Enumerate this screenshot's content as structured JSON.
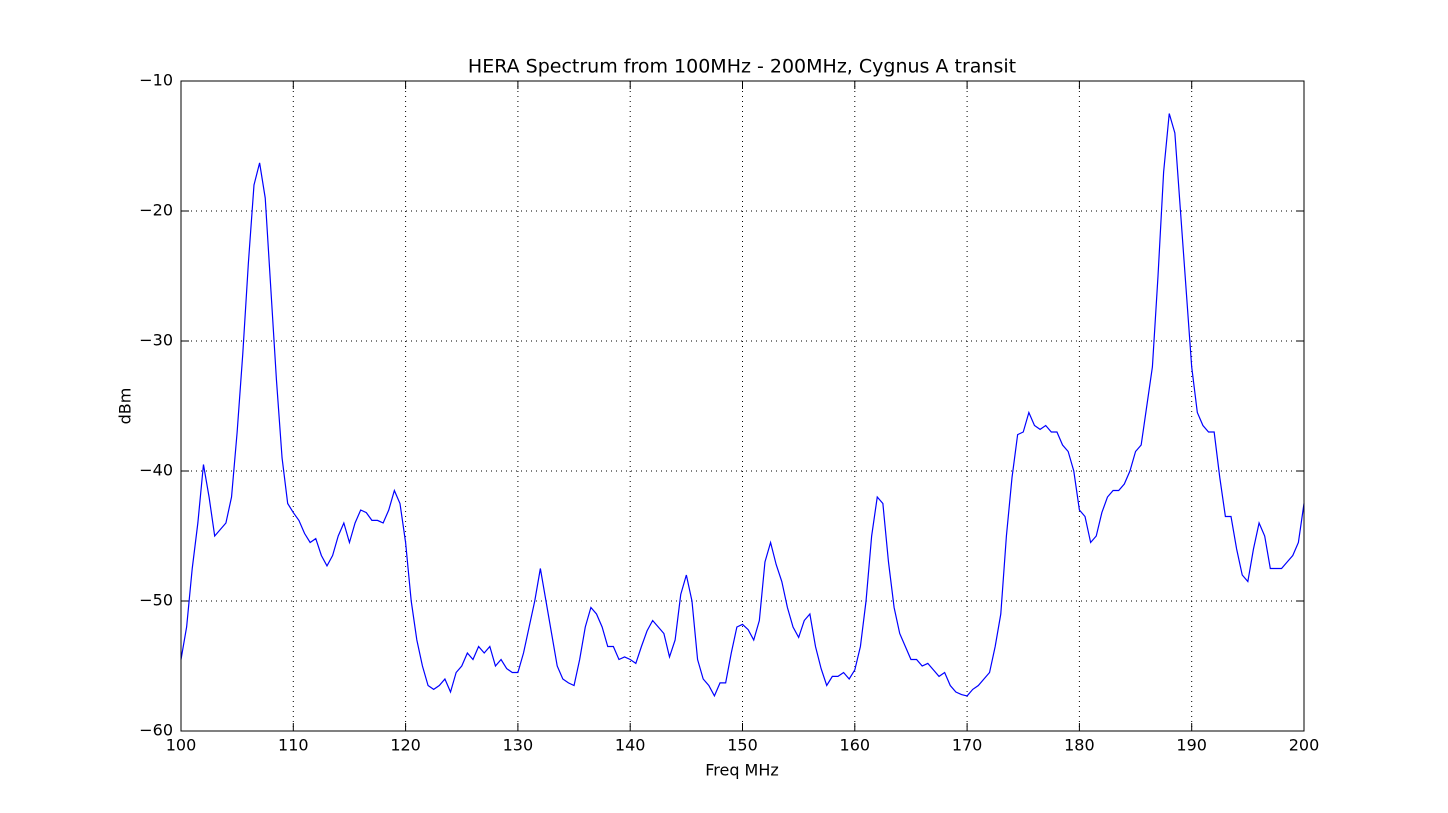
{
  "chart_data": {
    "type": "line",
    "title": "HERA Spectrum from 100MHz - 200MHz, Cygnus A transit",
    "x_label": "Freq MHz",
    "y_label": "dBm",
    "x": [
      100,
      100.5,
      101,
      101.5,
      102,
      102.5,
      103,
      103.5,
      104,
      104.5,
      105,
      105.5,
      106,
      106.5,
      107,
      107.5,
      108,
      108.5,
      109,
      109.5,
      110,
      110.5,
      111,
      111.5,
      112,
      112.5,
      113,
      113.5,
      114,
      114.5,
      115,
      115.5,
      116,
      116.5,
      117,
      117.5,
      118,
      118.5,
      119,
      119.5,
      120,
      120.5,
      121,
      121.5,
      122,
      122.5,
      123,
      123.5,
      124,
      124.5,
      125,
      125.5,
      126,
      126.5,
      127,
      127.5,
      128,
      128.5,
      129,
      129.5,
      130,
      130.5,
      131,
      131.5,
      132,
      132.5,
      133,
      133.5,
      134,
      134.5,
      135,
      135.5,
      136,
      136.5,
      137,
      137.5,
      138,
      138.5,
      139,
      139.5,
      140,
      140.5,
      141,
      141.5,
      142,
      142.5,
      143,
      143.5,
      144,
      144.5,
      145,
      145.5,
      146,
      146.5,
      147,
      147.5,
      148,
      148.5,
      149,
      149.5,
      150,
      150.5,
      151,
      151.5,
      152,
      152.5,
      153,
      153.5,
      154,
      154.5,
      155,
      155.5,
      156,
      156.5,
      157,
      157.5,
      158,
      158.5,
      159,
      159.5,
      160,
      160.5,
      161,
      161.5,
      162,
      162.5,
      163,
      163.5,
      164,
      164.5,
      165,
      165.5,
      166,
      166.5,
      167,
      167.5,
      168,
      168.5,
      169,
      169.5,
      170,
      170.5,
      171,
      171.5,
      172,
      172.5,
      173,
      173.5,
      174,
      174.5,
      175,
      175.5,
      176,
      176.5,
      177,
      177.5,
      178,
      178.5,
      179,
      179.5,
      180,
      180.5,
      181,
      181.5,
      182,
      182.5,
      183,
      183.5,
      184,
      184.5,
      185,
      185.5,
      186,
      186.5,
      187,
      187.5,
      188,
      188.5,
      189,
      189.5,
      190,
      190.5,
      191,
      191.5,
      192,
      192.5,
      193,
      193.5,
      194,
      194.5,
      195,
      195.5,
      196,
      196.5,
      197,
      197.5,
      198,
      198.5,
      199,
      199.5,
      200
    ],
    "series": [
      {
        "color": "#0000ff",
        "values": [
          -54.5,
          -52,
          -47.5,
          -44,
          -39.5,
          -42,
          -45,
          -44.5,
          -44,
          -42,
          -37,
          -31,
          -24,
          -18,
          -16.3,
          -19,
          -26,
          -33,
          -39,
          -42.5,
          -43.2,
          -43.8,
          -44.8,
          -45.5,
          -45.2,
          -46.5,
          -47.3,
          -46.5,
          -45,
          -44,
          -45.5,
          -44,
          -43,
          -43.2,
          -43.8,
          -43.8,
          -44,
          -43,
          -41.5,
          -42.5,
          -45.5,
          -50,
          -53,
          -55,
          -56.5,
          -56.8,
          -56.5,
          -56,
          -57,
          -55.5,
          -55,
          -54,
          -54.5,
          -53.5,
          -54,
          -53.5,
          -55,
          -54.5,
          -55.2,
          -55.5,
          -55.5,
          -54,
          -52,
          -50,
          -47.5,
          -50,
          -52.5,
          -55,
          -56,
          -56.3,
          -56.5,
          -54.5,
          -52,
          -50.5,
          -51,
          -52,
          -53.5,
          -53.5,
          -54.5,
          -54.3,
          -54.5,
          -54.8,
          -53.5,
          -52.3,
          -51.5,
          -52,
          -52.5,
          -54.3,
          -53,
          -49.5,
          -48,
          -50,
          -54.5,
          -56,
          -56.5,
          -57.3,
          -56.3,
          -56.3,
          -54,
          -52,
          -51.8,
          -52.2,
          -53,
          -51.5,
          -47,
          -45.5,
          -47.2,
          -48.5,
          -50.5,
          -52,
          -52.8,
          -51.5,
          -51,
          -53.5,
          -55.2,
          -56.5,
          -55.8,
          -55.8,
          -55.5,
          -56,
          -55.3,
          -53.5,
          -50,
          -45,
          -42,
          -42.5,
          -47,
          -50.5,
          -52.5,
          -53.5,
          -54.5,
          -54.5,
          -55,
          -54.8,
          -55.3,
          -55.8,
          -55.5,
          -56.5,
          -57,
          -57.2,
          -57.3,
          -56.8,
          -56.5,
          -56,
          -55.5,
          -53.5,
          -51,
          -45,
          -40.5,
          -37.2,
          -37,
          -35.5,
          -36.5,
          -36.8,
          -36.5,
          -37,
          -37,
          -38,
          -38.5,
          -40,
          -43,
          -43.5,
          -45.5,
          -45,
          -43.2,
          -42,
          -41.5,
          -41.5,
          -41,
          -40,
          -38.5,
          -38,
          -35,
          -32,
          -25,
          -17,
          -12.5,
          -14,
          -20,
          -26,
          -32,
          -35.5,
          -36.5,
          -37,
          -37,
          -40.5,
          -43.5,
          -43.5,
          -46,
          -48,
          -48.5,
          -46,
          -44,
          -45,
          -47.5,
          -47.5,
          -47.5,
          -47,
          -46.5,
          -45.5,
          -42.5
        ]
      }
    ],
    "xlim": [
      100,
      200
    ],
    "xticks": [
      100,
      110,
      120,
      130,
      140,
      150,
      160,
      170,
      180,
      190,
      200
    ],
    "ylim": [
      -60,
      -10
    ],
    "yticks": [
      {
        "value": -60,
        "label": "−60"
      },
      {
        "value": -50,
        "label": "−50"
      },
      {
        "value": -40,
        "label": "−40"
      },
      {
        "value": -30,
        "label": "−30"
      },
      {
        "value": -20,
        "label": "−20"
      },
      {
        "value": -10,
        "label": "−10"
      }
    ],
    "grid": true
  }
}
